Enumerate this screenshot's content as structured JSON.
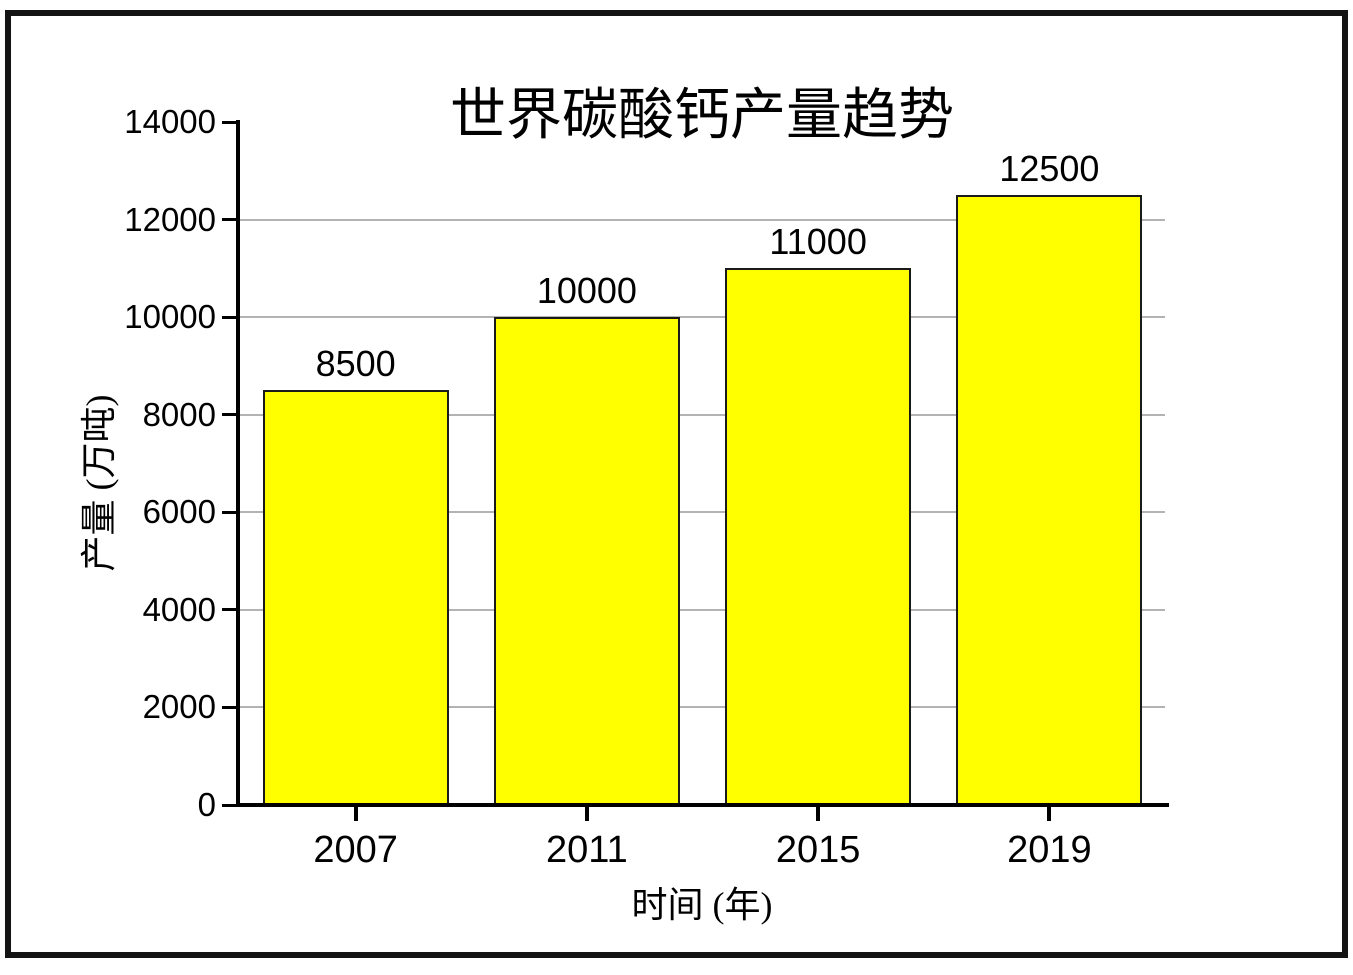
{
  "chart_data": {
    "type": "bar",
    "title": "世界碳酸钙产量趋势",
    "xlabel": "时间 (年)",
    "ylabel": "产量 (万吨)",
    "categories": [
      "2007",
      "2011",
      "2015",
      "2019"
    ],
    "values": [
      8500,
      10000,
      11000,
      12500
    ],
    "bar_value_labels": [
      "8500",
      "10000",
      "11000",
      "12500"
    ],
    "y_ticks": [
      0,
      2000,
      4000,
      6000,
      8000,
      10000,
      12000,
      14000
    ],
    "y_tick_labels": [
      "0",
      "2000",
      "4000",
      "6000",
      "8000",
      "10000",
      "12000",
      "14000"
    ],
    "gridline_values": [
      2000,
      4000,
      6000,
      8000,
      10000,
      12000
    ],
    "ylim": [
      0,
      14000
    ],
    "grid": true,
    "legend_position": "none",
    "colors": {
      "bar_fill": "#ffff00",
      "bar_border": "#1a1a1a",
      "gridline": "#b3b3b3",
      "axis": "#000000",
      "text": "#000000",
      "frame_border": "#141414",
      "background": "#ffffff"
    }
  }
}
